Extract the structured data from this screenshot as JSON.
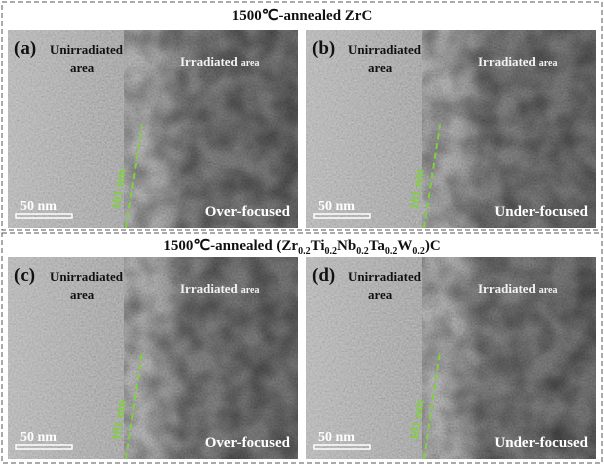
{
  "sections": [
    {
      "title_parts": [
        "1500℃-annealed ZrC"
      ],
      "panels": [
        {
          "label": "(a)",
          "unirradiated": [
            "Unirradiated",
            "area"
          ],
          "irradiated": [
            "Irradiated",
            "area"
          ],
          "scale": "50 nm",
          "depth": "101 nm",
          "focus": "Over-focused"
        },
        {
          "label": "(b)",
          "unirradiated": [
            "Unirradiated",
            "area"
          ],
          "irradiated": [
            "Irradiated",
            "area"
          ],
          "scale": "50 nm",
          "depth": "101 nm",
          "focus": "Under-focused"
        }
      ]
    },
    {
      "title_parts": [
        "1500℃-annealed (Zr",
        "0.2",
        "Ti",
        "0.2",
        "Nb",
        "0.2",
        "Ta",
        "0.2",
        "W",
        "0.2",
        ")C"
      ],
      "panels": [
        {
          "label": "(c)",
          "unirradiated": [
            "Unirradiated",
            "area"
          ],
          "irradiated": [
            "Irradiated",
            "area"
          ],
          "scale": "50 nm",
          "depth": "101 nm",
          "focus": "Over-focused"
        },
        {
          "label": "(d)",
          "unirradiated": [
            "Unirradiated",
            "area"
          ],
          "irradiated": [
            "Irradiated",
            "area"
          ],
          "scale": "50 nm",
          "depth": "101 nm",
          "focus": "Under-focused"
        }
      ]
    }
  ]
}
